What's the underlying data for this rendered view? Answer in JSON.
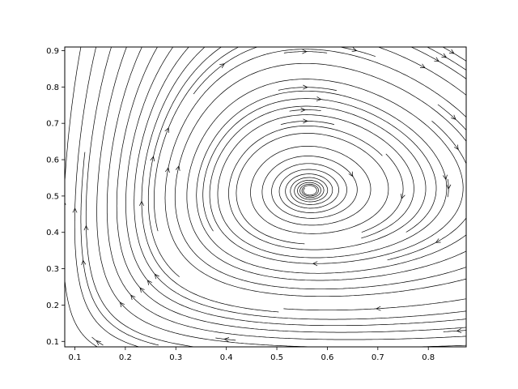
{
  "chart_data": {
    "type": "streamplot",
    "title": "",
    "xlabel": "",
    "ylabel": "",
    "xlim": [
      0.08,
      0.875
    ],
    "ylim": [
      0.085,
      0.91
    ],
    "x_ticks": [
      0.1,
      0.2,
      0.3,
      0.4,
      0.5,
      0.6,
      0.7,
      0.8
    ],
    "y_ticks": [
      0.1,
      0.2,
      0.3,
      0.4,
      0.5,
      0.6,
      0.7,
      0.8,
      0.9
    ],
    "x_tick_labels": [
      "0.1",
      "0.2",
      "0.3",
      "0.4",
      "0.5",
      "0.6",
      "0.7",
      "0.8"
    ],
    "y_tick_labels": [
      "0.1",
      "0.2",
      "0.3",
      "0.4",
      "0.5",
      "0.6",
      "0.7",
      "0.8",
      "0.9"
    ],
    "field": {
      "equilibrium": [
        0.565,
        0.515
      ],
      "direction": "counter-clockwise spiral (clockwise on screen), slowly converging to the equilibrium",
      "flow_top": "left-to-right",
      "flow_bottom": "right-to-left",
      "flow_left": "upward",
      "flow_right": "downward"
    },
    "line_color": "#000000",
    "grid": false,
    "legend": "none"
  }
}
